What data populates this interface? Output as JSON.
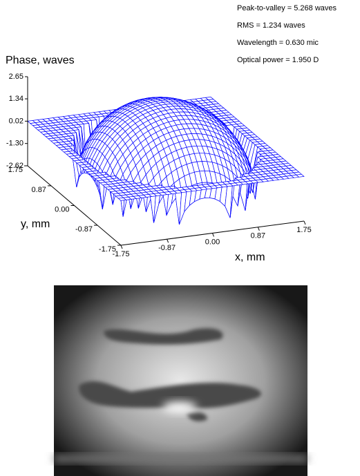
{
  "chart_data": {
    "type": "surface3d",
    "annotations": [
      "Peak-to-valley = 5.268 waves",
      "RMS = 1.234 waves",
      "Wavelength = 0.630 mic",
      "Optical power = 1.950 D"
    ],
    "z_label": "Phase, waves",
    "x_label": "x, mm",
    "y_label": "y, mm",
    "color": "#0000ff",
    "xlim": [
      -1.75,
      1.75
    ],
    "xticks": [
      -1.75,
      -0.87,
      {
        "value": 0,
        "label": "0.00"
      },
      0.87,
      1.75
    ],
    "ylim": [
      -1.75,
      1.75
    ],
    "yticks": [
      -1.75,
      -0.87,
      {
        "value": 0,
        "label": "0.00"
      },
      0.87,
      1.75
    ],
    "zlim": [
      -2.62,
      2.65
    ],
    "zticks": [
      -2.62,
      {
        "value": -1.3,
        "label": "-1.30"
      },
      0.02,
      1.34,
      2.65
    ]
  }
}
